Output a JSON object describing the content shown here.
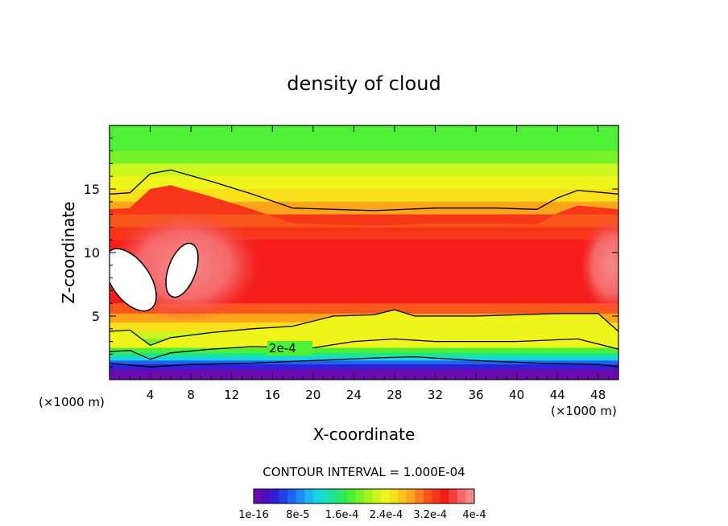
{
  "chart_data": {
    "type": "heatmap",
    "title": "density of cloud",
    "xlabel": "X-coordinate",
    "ylabel": "Z-coordinate",
    "x_unit": "(×1000 m)",
    "y_unit": "(×1000 m)",
    "xlim": [
      0,
      50
    ],
    "ylim": [
      0,
      20
    ],
    "x_ticks": [
      4,
      8,
      12,
      16,
      20,
      24,
      28,
      32,
      36,
      40,
      44,
      48
    ],
    "y_ticks": [
      5,
      10,
      15
    ],
    "contour_label": "2e-4",
    "contour_interval_text": "CONTOUR INTERVAL = 1.000E-04",
    "colorbar": {
      "min": 1e-16,
      "max": 0.0004,
      "tick_labels": [
        "1e-16",
        "8e-5",
        "1.6e-4",
        "2.4e-4",
        "3.2e-4",
        "4e-4"
      ],
      "colors": [
        "#6a0ab0",
        "#4b0fbf",
        "#2f1fd6",
        "#1e3fe8",
        "#1d64f0",
        "#1f8cf2",
        "#1fb4f2",
        "#17d4e6",
        "#18e0b8",
        "#1ee68a",
        "#2fea5a",
        "#4ef035",
        "#78f22a",
        "#a4f422",
        "#cdf51e",
        "#eef51a",
        "#f8e01a",
        "#fac41a",
        "#fca41b",
        "#fb7c1c",
        "#f9561c",
        "#f73519",
        "#f51c1a",
        "#f54040",
        "#f56868",
        "#f38a8a"
      ]
    },
    "contours_data_units": [
      {
        "level": "2e-4",
        "points": [
          [
            0,
            2.2
          ],
          [
            2,
            2.3
          ],
          [
            4,
            1.6
          ],
          [
            6,
            2.1
          ],
          [
            10,
            2.4
          ],
          [
            14,
            2.6
          ],
          [
            20,
            2.5
          ],
          [
            24,
            3.0
          ],
          [
            28,
            3.2
          ],
          [
            32,
            3.0
          ],
          [
            40,
            3.0
          ],
          [
            46,
            3.2
          ],
          [
            50,
            2.4
          ]
        ]
      },
      {
        "level": "3e-4",
        "points": [
          [
            0,
            3.8
          ],
          [
            2,
            3.9
          ],
          [
            4,
            2.7
          ],
          [
            6,
            3.3
          ],
          [
            10,
            3.7
          ],
          [
            14,
            4.0
          ],
          [
            18,
            4.2
          ],
          [
            22,
            5.0
          ],
          [
            26,
            5.1
          ],
          [
            28,
            5.5
          ],
          [
            30,
            5.0
          ],
          [
            36,
            5.0
          ],
          [
            44,
            5.2
          ],
          [
            48,
            5.2
          ],
          [
            50,
            3.8
          ]
        ]
      },
      {
        "level": "1e-4",
        "points": [
          [
            0,
            1.3
          ],
          [
            4,
            1.0
          ],
          [
            8,
            1.2
          ],
          [
            14,
            1.3
          ],
          [
            20,
            1.5
          ],
          [
            26,
            1.7
          ],
          [
            30,
            1.8
          ],
          [
            36,
            1.5
          ],
          [
            42,
            1.3
          ],
          [
            48,
            1.2
          ],
          [
            50,
            1.0
          ]
        ]
      },
      {
        "level": "3e-4 top",
        "points": [
          [
            0,
            14.6
          ],
          [
            2,
            14.7
          ],
          [
            4,
            16.2
          ],
          [
            6,
            16.5
          ],
          [
            10,
            15.6
          ],
          [
            14,
            14.6
          ],
          [
            18,
            13.5
          ],
          [
            22,
            13.4
          ],
          [
            26,
            13.3
          ],
          [
            32,
            13.5
          ],
          [
            38,
            13.5
          ],
          [
            42,
            13.4
          ],
          [
            44,
            14.3
          ],
          [
            46,
            14.9
          ],
          [
            50,
            14.6
          ]
        ]
      }
    ]
  }
}
